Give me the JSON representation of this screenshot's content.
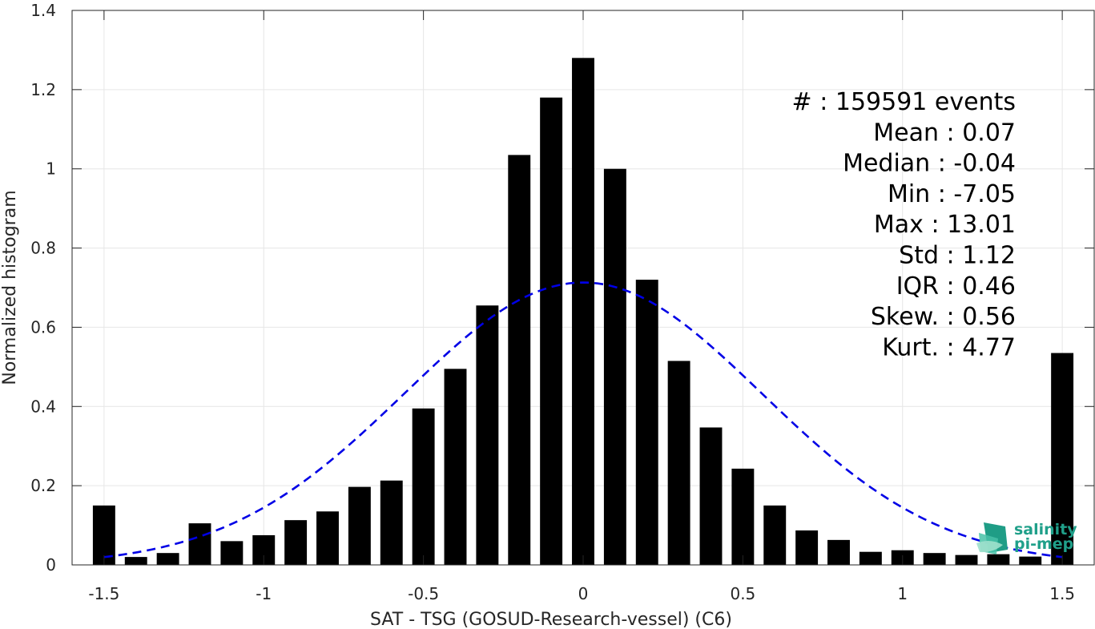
{
  "chart_data": {
    "type": "bar",
    "xlabel": "SAT - TSG (GOSUD-Research-vessel) (C6)",
    "ylabel": "Normalized histogram",
    "xlim": [
      -1.6,
      1.6
    ],
    "ylim": [
      0,
      1.4
    ],
    "x_ticks": [
      -1.5,
      -1,
      -0.5,
      0,
      0.5,
      1,
      1.5
    ],
    "x_tick_labels": [
      "-1.5",
      "-1",
      "-0.5",
      "0",
      "0.5",
      "1",
      "1.5"
    ],
    "y_ticks": [
      0,
      0.2,
      0.4,
      0.6,
      0.8,
      1,
      1.2,
      1.4
    ],
    "y_tick_labels": [
      "0",
      "0.2",
      "0.4",
      "0.6",
      "0.8",
      "1",
      "1.2",
      "1.4"
    ],
    "grid": true,
    "bar_color": "#000000",
    "bar_width": 0.07,
    "bins": [
      -1.5,
      -1.4,
      -1.3,
      -1.2,
      -1.1,
      -1.0,
      -0.9,
      -0.8,
      -0.7,
      -0.6,
      -0.5,
      -0.4,
      -0.3,
      -0.2,
      -0.1,
      0.0,
      0.1,
      0.2,
      0.3,
      0.4,
      0.5,
      0.6,
      0.7,
      0.8,
      0.9,
      1.0,
      1.1,
      1.2,
      1.3,
      1.4,
      1.5
    ],
    "values": [
      0.15,
      0.02,
      0.03,
      0.105,
      0.06,
      0.075,
      0.113,
      0.135,
      0.197,
      0.213,
      0.395,
      0.495,
      0.655,
      1.035,
      1.18,
      1.28,
      1.0,
      0.72,
      0.515,
      0.347,
      0.243,
      0.15,
      0.087,
      0.063,
      0.033,
      0.037,
      0.03,
      0.025,
      0.027,
      0.021,
      0.535
    ],
    "fit_curve": {
      "type": "gaussian",
      "mean": 0.0,
      "std": 0.56,
      "peak": 0.713,
      "color": "#0000e6",
      "style": "dashed",
      "x_range": [
        -1.5,
        1.5
      ]
    },
    "stats": [
      "#  : 159591 events",
      "Mean : 0.07",
      "Median : -0.04",
      "Min : -7.05",
      "Max : 13.01",
      "Std : 1.12",
      "IQR : 0.46",
      "Skew. : 0.56",
      "Kurt. : 4.77"
    ]
  },
  "logo": {
    "line1": "salinity",
    "line2": "pi-mep",
    "color": "#20a08a"
  }
}
